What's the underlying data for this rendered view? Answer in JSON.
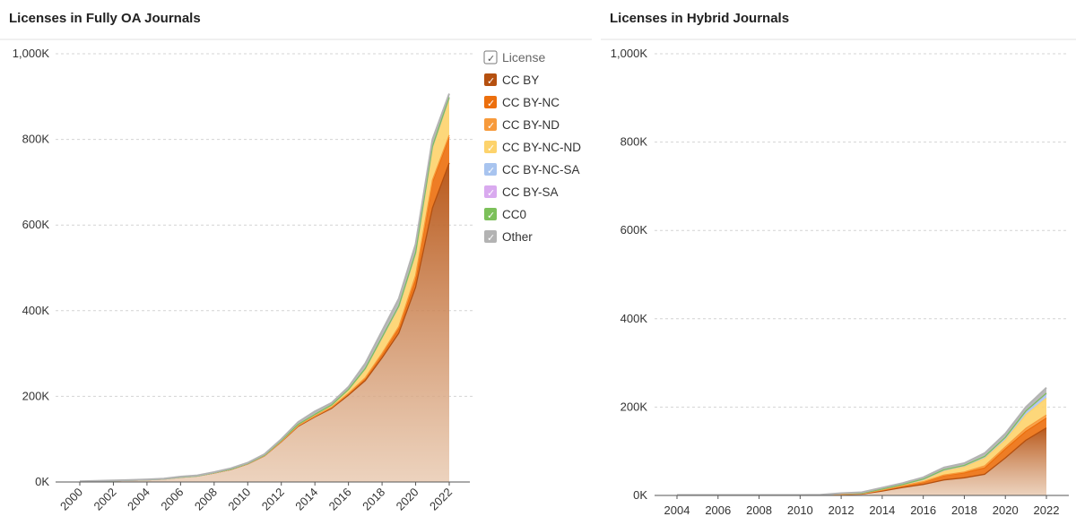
{
  "chart_data": [
    {
      "type": "area",
      "stacked": true,
      "title": "Licenses in Fully OA Journals",
      "xlabel": "",
      "ylabel": "",
      "ylim": [
        0,
        1000000
      ],
      "yticks": [
        "0K",
        "200K",
        "400K",
        "600K",
        "800K",
        "1,000K"
      ],
      "ytick_values": [
        0,
        200000,
        400000,
        600000,
        800000,
        1000000
      ],
      "xticks": [
        "2000",
        "2002",
        "2004",
        "2006",
        "2008",
        "2010",
        "2012",
        "2014",
        "2016",
        "2018",
        "2020",
        "2022"
      ],
      "x": [
        2000,
        2001,
        2002,
        2003,
        2004,
        2005,
        2006,
        2007,
        2008,
        2009,
        2010,
        2011,
        2012,
        2013,
        2014,
        2015,
        2016,
        2017,
        2018,
        2019,
        2020,
        2021,
        2022
      ],
      "grid": true,
      "legend_position": "right",
      "series": [
        {
          "name": "CC BY",
          "values": [
            1000,
            2000,
            3000,
            4000,
            5000,
            7000,
            11000,
            14000,
            21000,
            29000,
            42000,
            61000,
            94000,
            130000,
            152000,
            172000,
            203000,
            237000,
            290000,
            348000,
            455000,
            640000,
            745000
          ]
        },
        {
          "name": "CC BY-NC",
          "values": [
            0,
            0,
            0,
            0,
            0,
            0,
            0,
            0,
            0,
            500,
            500,
            500,
            1000,
            1500,
            2000,
            2500,
            3000,
            5000,
            8000,
            10000,
            16000,
            60000,
            60000
          ]
        },
        {
          "name": "CC BY-ND",
          "values": [
            0,
            0,
            0,
            0,
            0,
            0,
            0,
            0,
            0,
            0,
            0,
            0,
            0,
            0,
            0,
            500,
            1000,
            1500,
            2500,
            5000,
            11000,
            5000,
            5000
          ]
        },
        {
          "name": "CC BY-NC-ND",
          "values": [
            0,
            0,
            0,
            0,
            0,
            0,
            0,
            0,
            500,
            500,
            500,
            1000,
            2000,
            3000,
            4000,
            5000,
            9000,
            20000,
            35000,
            45000,
            50000,
            75000,
            85000
          ]
        },
        {
          "name": "CC BY-NC-SA",
          "values": [
            0,
            0,
            0,
            0,
            0,
            0,
            0,
            0,
            0,
            0,
            0,
            0,
            0,
            0,
            0,
            0,
            0,
            1000,
            1500,
            1500,
            2000,
            2000,
            2000
          ]
        },
        {
          "name": "CC BY-SA",
          "values": [
            0,
            0,
            0,
            0,
            0,
            0,
            0,
            0,
            0,
            0,
            0,
            0,
            0,
            0,
            0,
            0,
            0,
            500,
            500,
            1000,
            1000,
            1000,
            1000
          ]
        },
        {
          "name": "CC0",
          "values": [
            0,
            0,
            0,
            0,
            0,
            0,
            0,
            0,
            0,
            0,
            0,
            0,
            0,
            0,
            0,
            0,
            0,
            0,
            500,
            500,
            500,
            500,
            500
          ]
        },
        {
          "name": "Other",
          "values": [
            500,
            500,
            500,
            500,
            1000,
            1000,
            1500,
            1500,
            1500,
            2000,
            2000,
            2500,
            3000,
            5500,
            7000,
            5000,
            6000,
            12000,
            15000,
            17500,
            20000,
            16500,
            8500
          ]
        }
      ]
    },
    {
      "type": "area",
      "stacked": true,
      "title": "Licenses in Hybrid Journals",
      "xlabel": "",
      "ylabel": "",
      "ylim": [
        0,
        1000000
      ],
      "yticks": [
        "0K",
        "200K",
        "400K",
        "600K",
        "800K",
        "1,000K"
      ],
      "ytick_values": [
        0,
        200000,
        400000,
        600000,
        800000,
        1000000
      ],
      "xticks": [
        "2004",
        "2006",
        "2008",
        "2010",
        "2012",
        "2014",
        "2016",
        "2018",
        "2020",
        "2022"
      ],
      "x": [
        2004,
        2005,
        2006,
        2007,
        2008,
        2009,
        2010,
        2011,
        2012,
        2013,
        2014,
        2015,
        2016,
        2017,
        2018,
        2019,
        2020,
        2021,
        2022
      ],
      "grid": true,
      "series": [
        {
          "name": "CC BY",
          "values": [
            1000,
            1000,
            1000,
            1000,
            1000,
            1000,
            1000,
            1000,
            2000,
            3000,
            10000,
            18000,
            25000,
            35000,
            40000,
            48000,
            85000,
            125000,
            153000
          ]
        },
        {
          "name": "CC BY-NC",
          "values": [
            0,
            0,
            0,
            0,
            0,
            0,
            0,
            0,
            500,
            1000,
            2000,
            3000,
            5000,
            10000,
            11000,
            14000,
            20000,
            20000,
            22000
          ]
        },
        {
          "name": "CC BY-ND",
          "values": [
            0,
            0,
            0,
            0,
            0,
            0,
            0,
            0,
            0,
            0,
            500,
            1000,
            1000,
            1000,
            2000,
            5000,
            5000,
            7000,
            7000
          ]
        },
        {
          "name": "CC BY-NC-ND",
          "values": [
            0,
            0,
            0,
            0,
            0,
            0,
            0,
            500,
            2000,
            1000,
            2000,
            3000,
            4000,
            10000,
            12000,
            17000,
            15000,
            30000,
            38000
          ]
        },
        {
          "name": "CC BY-NC-SA",
          "values": [
            0,
            0,
            0,
            0,
            0,
            0,
            0,
            0,
            0,
            0,
            0,
            0,
            1000,
            1000,
            2000,
            3000,
            5000,
            7000,
            9000
          ]
        },
        {
          "name": "CC BY-SA",
          "values": [
            0,
            0,
            0,
            0,
            0,
            0,
            0,
            0,
            0,
            0,
            0,
            0,
            500,
            500,
            500,
            1000,
            1000,
            1500,
            1500
          ]
        },
        {
          "name": "CC0",
          "values": [
            0,
            0,
            0,
            0,
            0,
            0,
            0,
            0,
            0,
            0,
            0,
            0,
            500,
            500,
            500,
            500,
            500,
            500,
            1000
          ]
        },
        {
          "name": "Other",
          "values": [
            0,
            0,
            0,
            0,
            0,
            0,
            0,
            0,
            500,
            2000,
            3000,
            3000,
            4000,
            5000,
            5000,
            7500,
            8500,
            9000,
            12500
          ]
        }
      ]
    }
  ],
  "legend": {
    "header": "License",
    "items": [
      {
        "label": "CC BY",
        "color": "#b5500f"
      },
      {
        "label": "CC BY-NC",
        "color": "#ec6f0d"
      },
      {
        "label": "CC BY-ND",
        "color": "#f79a3b"
      },
      {
        "label": "CC BY-NC-ND",
        "color": "#fdd36c"
      },
      {
        "label": "CC BY-NC-SA",
        "color": "#a8c4ef"
      },
      {
        "label": "CC BY-SA",
        "color": "#d9aaef"
      },
      {
        "label": "CC0",
        "color": "#7cc05a"
      },
      {
        "label": "Other",
        "color": "#b3b3b3"
      }
    ]
  }
}
